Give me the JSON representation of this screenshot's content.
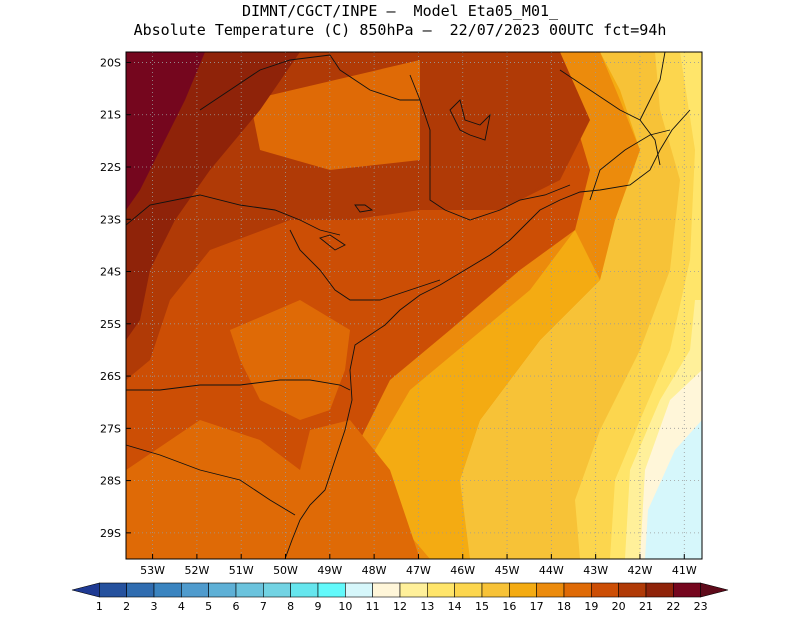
{
  "title": {
    "line1": "DIMNT/CGCT/INPE —  Model Eta05_M01_",
    "line2": "Absolute Temperature (C) 850hPa —  22/07/2023 00UTC fct=94h"
  },
  "map": {
    "lat_labels": [
      "20S",
      "21S",
      "22S",
      "23S",
      "24S",
      "25S",
      "26S",
      "27S",
      "28S",
      "29S"
    ],
    "lon_labels": [
      "53W",
      "52W",
      "51W",
      "50W",
      "49W",
      "48W",
      "47W",
      "46W",
      "45W",
      "44W",
      "43W",
      "42W",
      "41W"
    ],
    "extent": {
      "lon_min": -53.6,
      "lon_max": -40.6,
      "lat_min": -29.5,
      "lat_max": -19.8
    }
  },
  "colorbar": {
    "labels": [
      "1",
      "2",
      "3",
      "4",
      "5",
      "6",
      "7",
      "8",
      "9",
      "10",
      "11",
      "12",
      "13",
      "14",
      "15",
      "16",
      "17",
      "18",
      "19",
      "20",
      "21",
      "22",
      "23"
    ],
    "colors": [
      "#1f3a93",
      "#25519e",
      "#2f6cb0",
      "#3a84c0",
      "#4f9bcd",
      "#5eb0d6",
      "#6bc3dd",
      "#72d3e3",
      "#66e6ee",
      "#62f9fb",
      "#d6f7fb",
      "#fff6d9",
      "#fff09a",
      "#ffe56a",
      "#fcd64e",
      "#f7c237",
      "#f4ab12",
      "#ec8b0c",
      "#df6a06",
      "#cc4e05",
      "#b03a06",
      "#8f2309",
      "#75061e",
      "#5e0a1a"
    ]
  },
  "field": {
    "bg": "#cc4e05",
    "colors": {
      "c23": "#75061e",
      "c22": "#8f2309",
      "c21": "#b03a06",
      "c19": "#df6a06",
      "c18": "#ec8b0c",
      "c17": "#f4ab12",
      "c16": "#f7c237",
      "c15": "#fcd64e",
      "c14": "#ffe56a",
      "c13": "#fff09a",
      "c11": "#fff6d9",
      "c10": "#d6f7fb"
    }
  }
}
